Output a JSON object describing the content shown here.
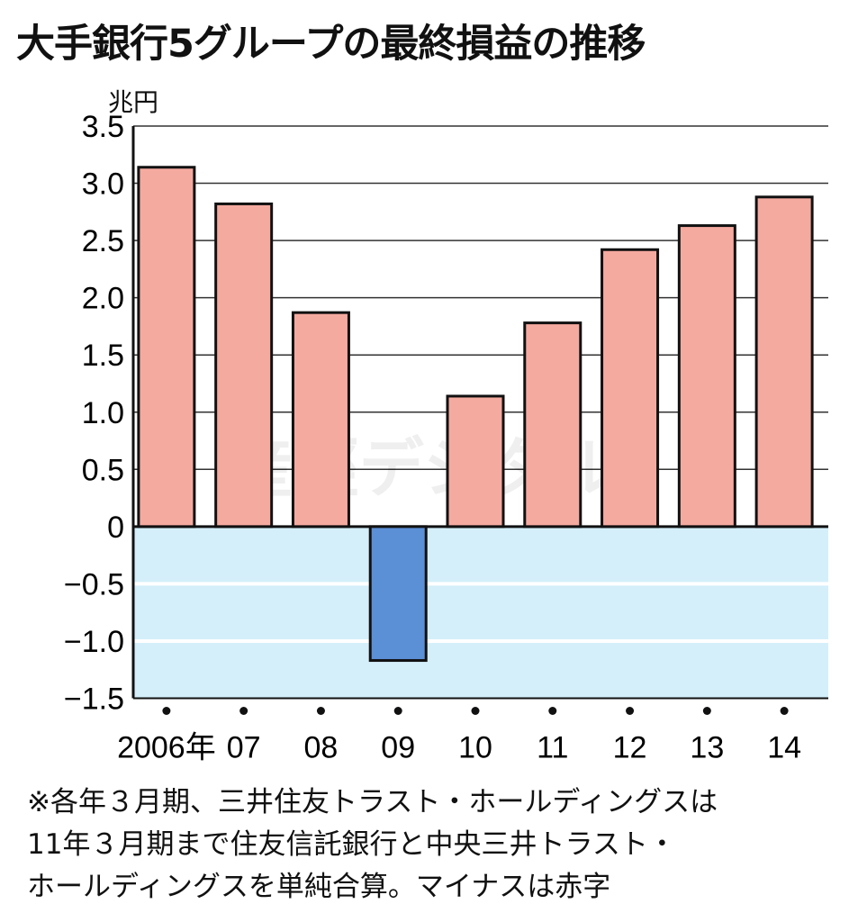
{
  "chart_data": {
    "type": "bar",
    "title": "大手銀行5グループの最終損益の推移",
    "ylabel": "兆円",
    "xlabel": "",
    "categories": [
      "2006年",
      "07",
      "08",
      "09",
      "10",
      "11",
      "12",
      "13",
      "14"
    ],
    "values": [
      3.14,
      2.82,
      1.87,
      -1.17,
      1.14,
      1.78,
      2.42,
      2.63,
      2.88
    ],
    "ylim": [
      -1.5,
      3.5
    ],
    "yticks": [
      "3.5",
      "3.0",
      "2.5",
      "2.0",
      "1.5",
      "1.0",
      "0.5",
      "0",
      "-0.5",
      "-1.0",
      "-1.5"
    ],
    "grid": true,
    "colors": {
      "positive": "#f5aaa0",
      "negative": "#5b8fd6",
      "negative_region": "#d4effa"
    },
    "note": "※各年３月期、三井住友トラスト・ホールディングスは\n11年３月期まで住友信託銀行と中央三井トラスト・\nホールディングスを単純合算。マイナスは赤字",
    "watermark": "産經デジタル"
  }
}
